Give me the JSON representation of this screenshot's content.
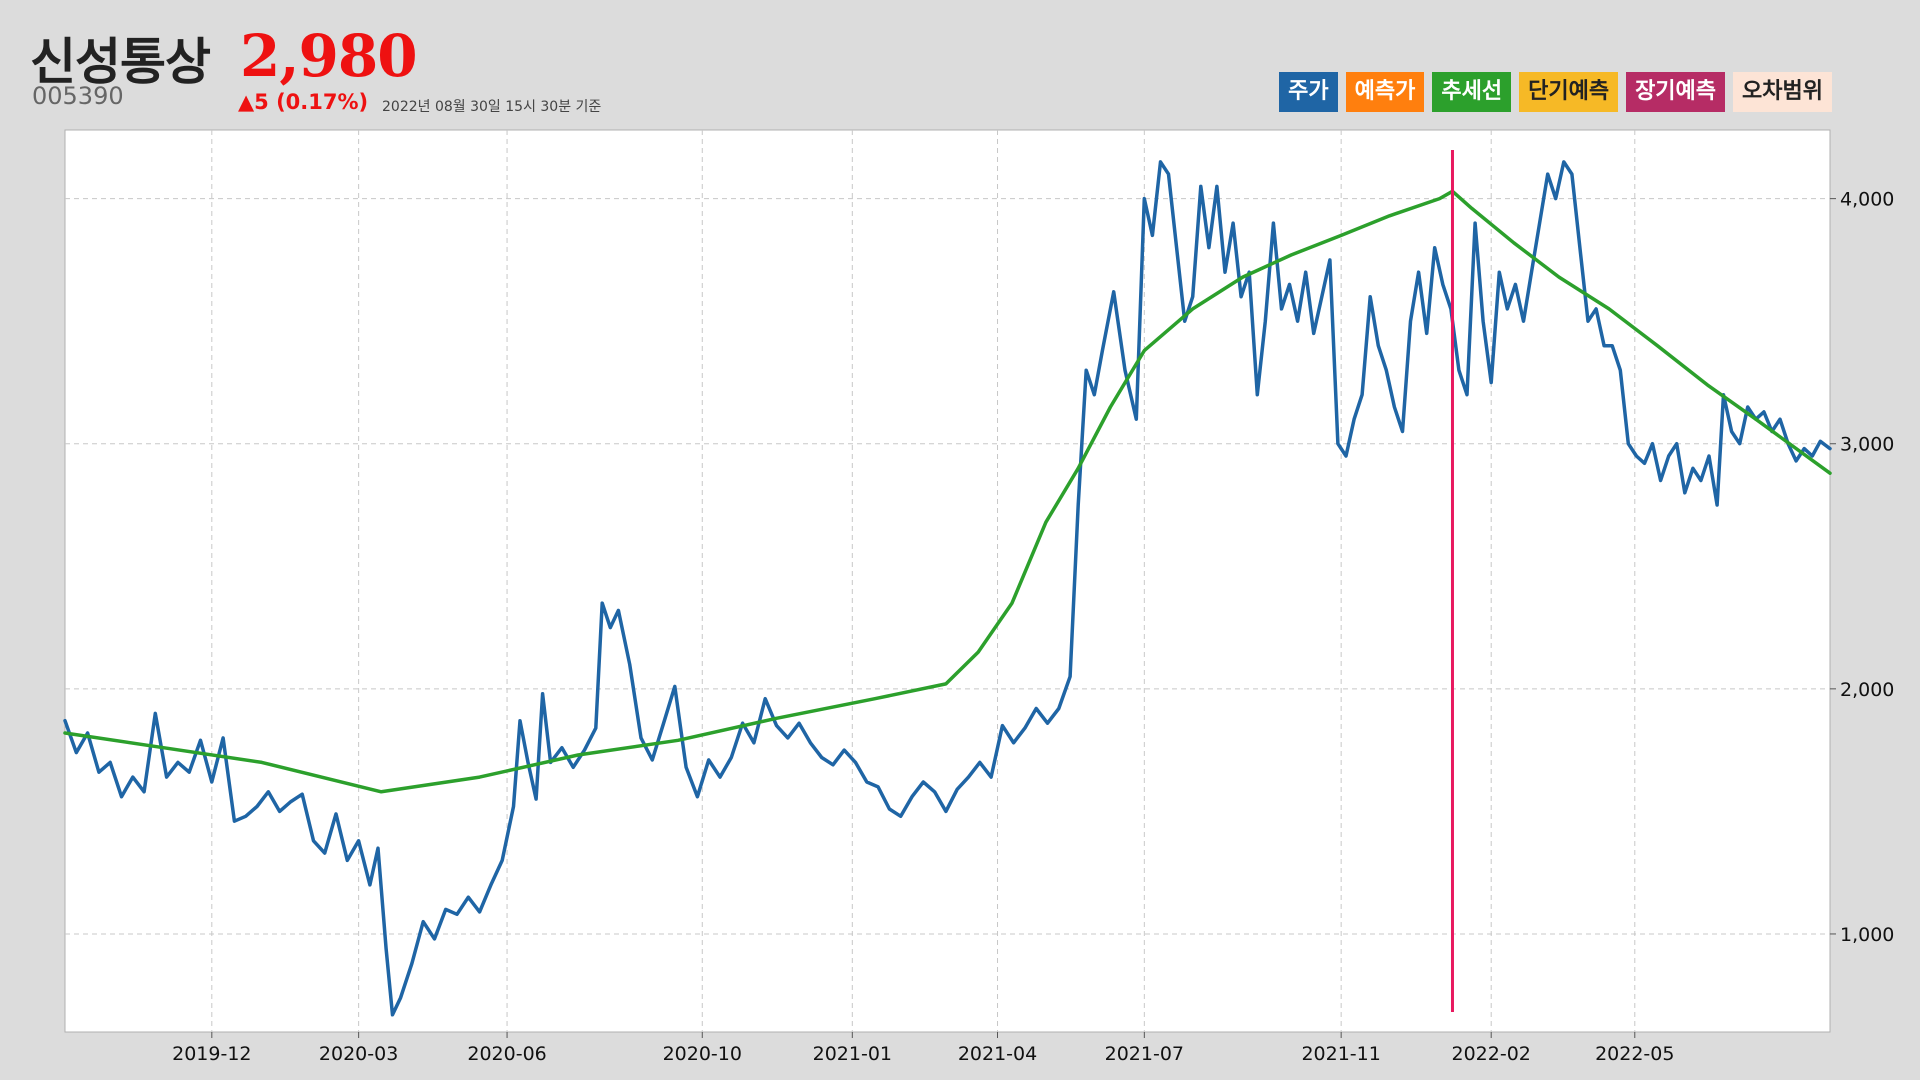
{
  "header": {
    "name": "신성통상",
    "price": "2,980",
    "code": "005390",
    "change": "▲5 (0.17%)",
    "date_text": "2022년 08월 30일 15시 30분 기준"
  },
  "legend": [
    {
      "label": "주가",
      "color": "#1f65a5",
      "text_color": "#ffffff"
    },
    {
      "label": "예측가",
      "color": "#ff7f0e",
      "text_color": "#ffffff"
    },
    {
      "label": "추세선",
      "color": "#2ca02c",
      "text_color": "#ffffff"
    },
    {
      "label": "단기예측",
      "color": "#f6b926",
      "text_color": "#222222"
    },
    {
      "label": "장기예측",
      "color": "#b62c65",
      "text_color": "#ffffff"
    },
    {
      "label": "오차범위",
      "color": "#fde4d6",
      "text_color": "#222222"
    }
  ],
  "chart_data": {
    "type": "line",
    "x_range": [
      "2019-09-01",
      "2022-08-30"
    ],
    "ylim": [
      600,
      4280
    ],
    "y_ticks": [
      1000,
      2000,
      3000,
      4000
    ],
    "y_tick_labels": [
      "1,000",
      "2,000",
      "3,000",
      "4,000"
    ],
    "x_ticks": [
      "2019-12-01",
      "2020-03-01",
      "2020-06-01",
      "2020-09-30",
      "2021-01-01",
      "2021-04-01",
      "2021-07-01",
      "2021-10-31",
      "2022-02-01",
      "2022-05-01"
    ],
    "x_tick_labels": [
      "2019-12",
      "2020-03",
      "2020-06",
      "2020-10",
      "2021-01",
      "2021-04",
      "2021-07",
      "2021-11",
      "2022-02",
      "2022-05"
    ],
    "grid": true,
    "y_axis_position": "right",
    "vertical_marker": {
      "date": "2022-01-08",
      "color": "#e8185f"
    },
    "series": [
      {
        "color": "#1f65a5",
        "width": 3.5,
        "points": [
          [
            "2019-09-01",
            1870
          ],
          [
            "2019-09-08",
            1740
          ],
          [
            "2019-09-15",
            1820
          ],
          [
            "2019-09-22",
            1660
          ],
          [
            "2019-09-29",
            1700
          ],
          [
            "2019-10-06",
            1560
          ],
          [
            "2019-10-13",
            1640
          ],
          [
            "2019-10-20",
            1580
          ],
          [
            "2019-10-27",
            1900
          ],
          [
            "2019-11-03",
            1640
          ],
          [
            "2019-11-10",
            1700
          ],
          [
            "2019-11-17",
            1660
          ],
          [
            "2019-11-24",
            1790
          ],
          [
            "2019-12-01",
            1620
          ],
          [
            "2019-12-08",
            1800
          ],
          [
            "2019-12-15",
            1460
          ],
          [
            "2019-12-22",
            1480
          ],
          [
            "2019-12-29",
            1520
          ],
          [
            "2020-01-05",
            1580
          ],
          [
            "2020-01-12",
            1500
          ],
          [
            "2020-01-19",
            1540
          ],
          [
            "2020-01-26",
            1570
          ],
          [
            "2020-02-02",
            1380
          ],
          [
            "2020-02-09",
            1330
          ],
          [
            "2020-02-16",
            1490
          ],
          [
            "2020-02-23",
            1300
          ],
          [
            "2020-03-01",
            1380
          ],
          [
            "2020-03-08",
            1200
          ],
          [
            "2020-03-13",
            1350
          ],
          [
            "2020-03-18",
            940
          ],
          [
            "2020-03-22",
            670
          ],
          [
            "2020-03-27",
            740
          ],
          [
            "2020-04-03",
            880
          ],
          [
            "2020-04-10",
            1050
          ],
          [
            "2020-04-17",
            980
          ],
          [
            "2020-04-24",
            1100
          ],
          [
            "2020-05-01",
            1080
          ],
          [
            "2020-05-08",
            1150
          ],
          [
            "2020-05-15",
            1090
          ],
          [
            "2020-05-22",
            1200
          ],
          [
            "2020-05-29",
            1300
          ],
          [
            "2020-06-05",
            1520
          ],
          [
            "2020-06-09",
            1870
          ],
          [
            "2020-06-14",
            1700
          ],
          [
            "2020-06-19",
            1550
          ],
          [
            "2020-06-23",
            1980
          ],
          [
            "2020-06-28",
            1700
          ],
          [
            "2020-07-05",
            1760
          ],
          [
            "2020-07-12",
            1680
          ],
          [
            "2020-07-19",
            1750
          ],
          [
            "2020-07-26",
            1840
          ],
          [
            "2020-07-30",
            2350
          ],
          [
            "2020-08-04",
            2250
          ],
          [
            "2020-08-09",
            2320
          ],
          [
            "2020-08-16",
            2100
          ],
          [
            "2020-08-23",
            1800
          ],
          [
            "2020-08-30",
            1710
          ],
          [
            "2020-09-06",
            1860
          ],
          [
            "2020-09-13",
            2010
          ],
          [
            "2020-09-20",
            1680
          ],
          [
            "2020-09-27",
            1560
          ],
          [
            "2020-10-04",
            1710
          ],
          [
            "2020-10-11",
            1640
          ],
          [
            "2020-10-18",
            1720
          ],
          [
            "2020-10-25",
            1860
          ],
          [
            "2020-11-01",
            1780
          ],
          [
            "2020-11-08",
            1960
          ],
          [
            "2020-11-15",
            1850
          ],
          [
            "2020-11-22",
            1800
          ],
          [
            "2020-11-29",
            1860
          ],
          [
            "2020-12-06",
            1780
          ],
          [
            "2020-12-13",
            1720
          ],
          [
            "2020-12-20",
            1690
          ],
          [
            "2020-12-27",
            1750
          ],
          [
            "2021-01-03",
            1700
          ],
          [
            "2021-01-10",
            1620
          ],
          [
            "2021-01-17",
            1600
          ],
          [
            "2021-01-24",
            1510
          ],
          [
            "2021-01-31",
            1480
          ],
          [
            "2021-02-07",
            1560
          ],
          [
            "2021-02-14",
            1620
          ],
          [
            "2021-02-21",
            1580
          ],
          [
            "2021-02-28",
            1500
          ],
          [
            "2021-03-07",
            1590
          ],
          [
            "2021-03-14",
            1640
          ],
          [
            "2021-03-21",
            1700
          ],
          [
            "2021-03-28",
            1640
          ],
          [
            "2021-04-04",
            1850
          ],
          [
            "2021-04-11",
            1780
          ],
          [
            "2021-04-18",
            1840
          ],
          [
            "2021-04-25",
            1920
          ],
          [
            "2021-05-02",
            1860
          ],
          [
            "2021-05-09",
            1920
          ],
          [
            "2021-05-16",
            2050
          ],
          [
            "2021-05-21",
            2750
          ],
          [
            "2021-05-26",
            3300
          ],
          [
            "2021-05-31",
            3200
          ],
          [
            "2021-06-05",
            3380
          ],
          [
            "2021-06-12",
            3620
          ],
          [
            "2021-06-19",
            3300
          ],
          [
            "2021-06-26",
            3100
          ],
          [
            "2021-07-01",
            4000
          ],
          [
            "2021-07-06",
            3850
          ],
          [
            "2021-07-11",
            4150
          ],
          [
            "2021-07-16",
            4100
          ],
          [
            "2021-07-21",
            3800
          ],
          [
            "2021-07-26",
            3500
          ],
          [
            "2021-07-31",
            3600
          ],
          [
            "2021-08-05",
            4050
          ],
          [
            "2021-08-10",
            3800
          ],
          [
            "2021-08-15",
            4050
          ],
          [
            "2021-08-20",
            3700
          ],
          [
            "2021-08-25",
            3900
          ],
          [
            "2021-08-30",
            3600
          ],
          [
            "2021-09-04",
            3700
          ],
          [
            "2021-09-09",
            3200
          ],
          [
            "2021-09-14",
            3500
          ],
          [
            "2021-09-19",
            3900
          ],
          [
            "2021-09-24",
            3550
          ],
          [
            "2021-09-29",
            3650
          ],
          [
            "2021-10-04",
            3500
          ],
          [
            "2021-10-09",
            3700
          ],
          [
            "2021-10-14",
            3450
          ],
          [
            "2021-10-19",
            3600
          ],
          [
            "2021-10-24",
            3750
          ],
          [
            "2021-10-29",
            3000
          ],
          [
            "2021-11-03",
            2950
          ],
          [
            "2021-11-08",
            3100
          ],
          [
            "2021-11-13",
            3200
          ],
          [
            "2021-11-18",
            3600
          ],
          [
            "2021-11-23",
            3400
          ],
          [
            "2021-11-28",
            3300
          ],
          [
            "2021-12-03",
            3150
          ],
          [
            "2021-12-08",
            3050
          ],
          [
            "2021-12-13",
            3500
          ],
          [
            "2021-12-18",
            3700
          ],
          [
            "2021-12-23",
            3450
          ],
          [
            "2021-12-28",
            3800
          ],
          [
            "2022-01-02",
            3650
          ],
          [
            "2022-01-07",
            3550
          ],
          [
            "2022-01-12",
            3300
          ],
          [
            "2022-01-17",
            3200
          ],
          [
            "2022-01-22",
            3900
          ],
          [
            "2022-01-27",
            3500
          ],
          [
            "2022-02-01",
            3250
          ],
          [
            "2022-02-06",
            3700
          ],
          [
            "2022-02-11",
            3550
          ],
          [
            "2022-02-16",
            3650
          ],
          [
            "2022-02-21",
            3500
          ],
          [
            "2022-02-26",
            3700
          ],
          [
            "2022-03-03",
            3900
          ],
          [
            "2022-03-08",
            4100
          ],
          [
            "2022-03-13",
            4000
          ],
          [
            "2022-03-18",
            4150
          ],
          [
            "2022-03-23",
            4100
          ],
          [
            "2022-03-28",
            3800
          ],
          [
            "2022-04-02",
            3500
          ],
          [
            "2022-04-07",
            3550
          ],
          [
            "2022-04-12",
            3400
          ],
          [
            "2022-04-17",
            3400
          ],
          [
            "2022-04-22",
            3300
          ],
          [
            "2022-04-27",
            3000
          ],
          [
            "2022-05-02",
            2950
          ],
          [
            "2022-05-07",
            2920
          ],
          [
            "2022-05-12",
            3000
          ],
          [
            "2022-05-17",
            2850
          ],
          [
            "2022-05-22",
            2950
          ],
          [
            "2022-05-27",
            3000
          ],
          [
            "2022-06-01",
            2800
          ],
          [
            "2022-06-06",
            2900
          ],
          [
            "2022-06-11",
            2850
          ],
          [
            "2022-06-16",
            2950
          ],
          [
            "2022-06-21",
            2750
          ],
          [
            "2022-06-25",
            3200
          ],
          [
            "2022-06-30",
            3050
          ],
          [
            "2022-07-05",
            3000
          ],
          [
            "2022-07-10",
            3150
          ],
          [
            "2022-07-15",
            3100
          ],
          [
            "2022-07-20",
            3130
          ],
          [
            "2022-07-25",
            3050
          ],
          [
            "2022-07-30",
            3100
          ],
          [
            "2022-08-04",
            3000
          ],
          [
            "2022-08-09",
            2930
          ],
          [
            "2022-08-14",
            2980
          ],
          [
            "2022-08-19",
            2950
          ],
          [
            "2022-08-24",
            3010
          ],
          [
            "2022-08-30",
            2980
          ]
        ]
      },
      {
        "color": "#2ca02c",
        "width": 3.5,
        "points": [
          [
            "2019-09-01",
            1820
          ],
          [
            "2019-11-01",
            1760
          ],
          [
            "2020-01-01",
            1700
          ],
          [
            "2020-03-15",
            1580
          ],
          [
            "2020-05-15",
            1640
          ],
          [
            "2020-07-15",
            1730
          ],
          [
            "2020-09-15",
            1790
          ],
          [
            "2020-11-15",
            1880
          ],
          [
            "2021-01-15",
            1960
          ],
          [
            "2021-02-28",
            2020
          ],
          [
            "2021-03-20",
            2150
          ],
          [
            "2021-04-10",
            2350
          ],
          [
            "2021-05-01",
            2680
          ],
          [
            "2021-05-21",
            2900
          ],
          [
            "2021-06-10",
            3150
          ],
          [
            "2021-07-01",
            3380
          ],
          [
            "2021-07-31",
            3550
          ],
          [
            "2021-08-31",
            3680
          ],
          [
            "2021-09-30",
            3770
          ],
          [
            "2021-10-31",
            3850
          ],
          [
            "2021-11-30",
            3930
          ],
          [
            "2021-12-31",
            4000
          ],
          [
            "2022-01-08",
            4030
          ],
          [
            "2022-01-20",
            3960
          ],
          [
            "2022-02-15",
            3820
          ],
          [
            "2022-03-15",
            3680
          ],
          [
            "2022-04-15",
            3550
          ],
          [
            "2022-05-15",
            3400
          ],
          [
            "2022-06-15",
            3240
          ],
          [
            "2022-07-15",
            3100
          ],
          [
            "2022-08-30",
            2880
          ]
        ]
      }
    ]
  }
}
